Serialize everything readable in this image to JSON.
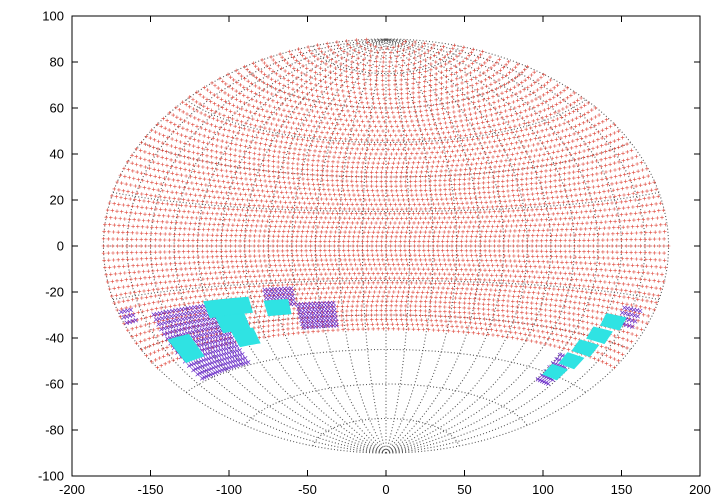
{
  "chart_data": {
    "type": "scatter",
    "projection": "aitoff",
    "title": "",
    "xlabel": "",
    "ylabel": "",
    "xlim": [
      -200,
      200
    ],
    "ylim": [
      -100,
      100
    ],
    "x_ticks": [
      -200,
      -150,
      -100,
      -50,
      0,
      50,
      100,
      150,
      200
    ],
    "y_ticks": [
      -100,
      -80,
      -60,
      -40,
      -20,
      0,
      20,
      40,
      60,
      80,
      100
    ],
    "x_tick_labels": [
      "-200",
      "-150",
      "-100",
      "-50",
      "0",
      "50",
      "100",
      "150",
      "200"
    ],
    "y_tick_labels": [
      "-100",
      "-80",
      "-60",
      "-40",
      "-20",
      "0",
      "20",
      "40",
      "60",
      "80",
      "100"
    ],
    "grid": {
      "meridians_deg": [
        -180,
        -165,
        -150,
        -135,
        -120,
        -105,
        -90,
        -75,
        -60,
        -45,
        -30,
        -15,
        0,
        15,
        30,
        45,
        60,
        75,
        90,
        105,
        120,
        135,
        150,
        165,
        180
      ],
      "parallels_deg": [
        -75,
        -60,
        -45,
        -30,
        -15,
        0,
        15,
        30,
        45,
        60,
        75
      ],
      "color": "#555555"
    },
    "series": [
      {
        "marker": "plus",
        "color": "#e0483c",
        "dec_range": [
          -36,
          86
        ],
        "dec_step": 2,
        "ra_step": 3
      },
      {
        "marker": "cross",
        "color": "#6a2cc8",
        "regions": [
          {
            "ra": [
              -178,
              -170
            ],
            "dec": [
              -22,
              -18
            ]
          },
          {
            "ra": [
              -158,
              -112
            ],
            "dec": [
              -44,
              -20
            ]
          },
          {
            "ra": [
              -110,
              -98
            ],
            "dec": [
              -36,
              -28
            ]
          },
          {
            "ra": [
              -80,
              -62
            ],
            "dec": [
              -24,
              -16
            ]
          },
          {
            "ra": [
              -60,
              -34
            ],
            "dec": [
              -34,
              -24
            ]
          },
          {
            "ra": [
              136,
              148
            ],
            "dec": [
              -48,
              -38
            ]
          },
          {
            "ra": [
              160,
              172
            ],
            "dec": [
              -24,
              -18
            ]
          }
        ]
      },
      {
        "marker": "block",
        "color": "#2fe3e3",
        "regions": [
          {
            "ra": [
              -158,
              -142
            ],
            "dec": [
              -38,
              -30
            ]
          },
          {
            "ra": [
              -122,
              -92
            ],
            "dec": [
              -26,
              -20
            ]
          },
          {
            "ra": [
              -118,
              -98
            ],
            "dec": [
              -32,
              -26
            ]
          },
          {
            "ra": [
              -112,
              -96
            ],
            "dec": [
              -38,
              -32
            ]
          },
          {
            "ra": [
              -82,
              -66
            ],
            "dec": [
              -28,
              -22
            ]
          },
          {
            "ra": [
              150,
              164
            ],
            "dec": [
              -26,
              -22
            ]
          },
          {
            "ra": [
              146,
              160
            ],
            "dec": [
              -31,
              -27
            ]
          },
          {
            "ra": [
              142,
              157
            ],
            "dec": [
              -36,
              -32
            ]
          },
          {
            "ra": [
              140,
              154
            ],
            "dec": [
              -41,
              -37
            ]
          },
          {
            "ra": [
              136,
              150
            ],
            "dec": [
              -46,
              -42
            ]
          }
        ]
      }
    ]
  }
}
